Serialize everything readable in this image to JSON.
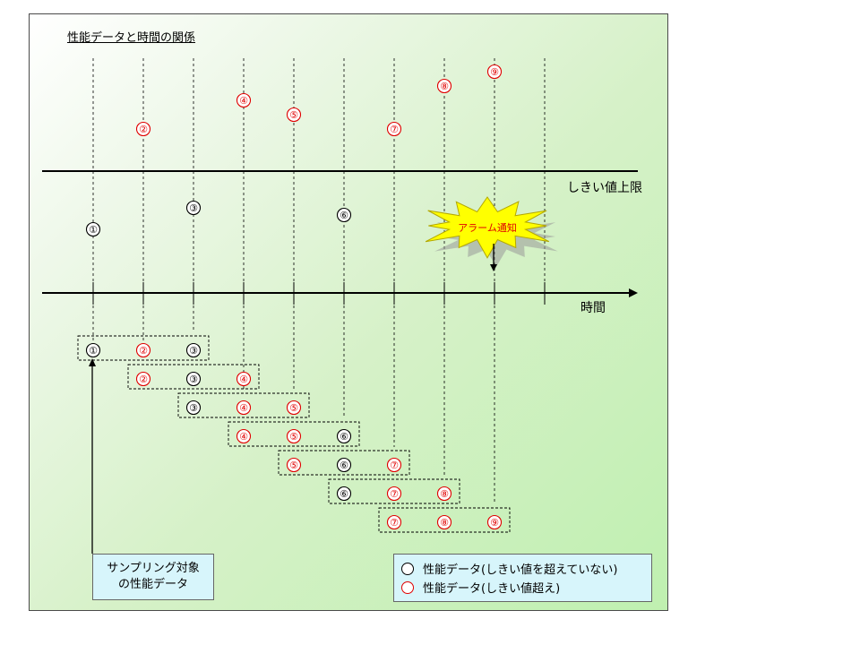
{
  "title": "性能データと時間の関係",
  "threshold_label": "しきい値上限",
  "time_axis_label": "時間",
  "alarm_label": "アラーム通知",
  "sampling_label_line1": "サンプリング対象",
  "sampling_label_line2": "の性能データ",
  "legend": {
    "normal": "性能データ(しきい値を超えていない)",
    "exceeded": "性能データ(しきい値超え)"
  },
  "colors": {
    "normal": "#000000",
    "exceeded": "#e00000",
    "alarm": "#ffff00"
  },
  "data_points": [
    {
      "label": "①",
      "status": "normal"
    },
    {
      "label": "②",
      "status": "exceeded"
    },
    {
      "label": "③",
      "status": "normal"
    },
    {
      "label": "④",
      "status": "exceeded"
    },
    {
      "label": "⑤",
      "status": "exceeded"
    },
    {
      "label": "⑥",
      "status": "normal"
    },
    {
      "label": "⑦",
      "status": "exceeded"
    },
    {
      "label": "⑧",
      "status": "exceeded"
    },
    {
      "label": "⑨",
      "status": "exceeded"
    }
  ],
  "sampling_windows": [
    [
      "①",
      "②",
      "③"
    ],
    [
      "②",
      "③",
      "④"
    ],
    [
      "③",
      "④",
      "⑤"
    ],
    [
      "④",
      "⑤",
      "⑥"
    ],
    [
      "⑤",
      "⑥",
      "⑦"
    ],
    [
      "⑥",
      "⑦",
      "⑧"
    ],
    [
      "⑦",
      "⑧",
      "⑨"
    ]
  ]
}
